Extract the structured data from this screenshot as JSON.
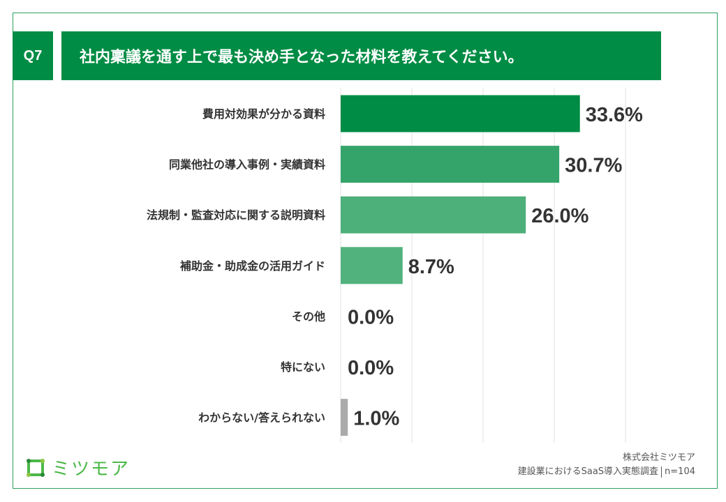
{
  "header": {
    "question_no": "Q7",
    "title": "社内稟議を通す上で最も決め手となった材料を教えてください。"
  },
  "chart_data": {
    "type": "bar",
    "orientation": "horizontal",
    "title": "社内稟議を通す上で最も決め手となった材料を教えてください。",
    "categories": [
      "費用対効果が分かる資料",
      "同業他社の導入事例・実績資料",
      "法規制・監査対応に関する説明資料",
      "補助金・助成金の活用ガイド",
      "その他",
      "特にない",
      "わからない/答えられない"
    ],
    "values": [
      33.6,
      30.7,
      26.0,
      8.7,
      0.0,
      0.0,
      1.0
    ],
    "data_labels": [
      "33.6%",
      "30.7%",
      "26.0%",
      "8.7%",
      "0.0%",
      "0.0%",
      "1.0%"
    ],
    "unit": "%",
    "xlim": [
      0,
      40
    ],
    "grid": true,
    "colors": [
      "#008c44",
      "#35a46b",
      "#4daf7a",
      "#52b27d",
      "#52b27d",
      "#52b27d",
      "#aaaaaa"
    ]
  },
  "footer": {
    "company": "株式会社ミツモア",
    "survey": "建設業におけるSaaS導入実態調査",
    "sample": "n=104",
    "logo_text": "ミツモア"
  }
}
